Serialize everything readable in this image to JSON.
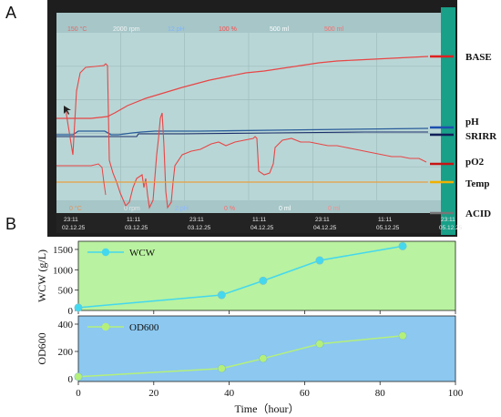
{
  "panel_a": {
    "letter": "A",
    "header": {
      "labels": [
        "150 °C",
        "2000 rpm",
        "12 pH",
        "100 %",
        "500 ml",
        "500 ml"
      ],
      "colors": [
        "#e06a6a",
        "#f4f4f4",
        "#7fb4ff",
        "#ff4a4a",
        "#ffffff",
        "#ff6a6a"
      ]
    },
    "footer": {
      "labels": [
        "0 °C",
        "0 rpm",
        "2 pH",
        "0 %",
        "0 ml",
        "0 ml"
      ],
      "colors": [
        "#e8925a",
        "#e6e6e6",
        "#8fb8ff",
        "#ff6a6a",
        "#ffffff",
        "#ff8a8a"
      ]
    },
    "time_axis": [
      {
        "time": "23:11",
        "date": "02.12.25"
      },
      {
        "time": "11:11",
        "date": "03.12.25"
      },
      {
        "time": "23:11",
        "date": "03.12.25"
      },
      {
        "time": "11:11",
        "date": "04.12.25"
      },
      {
        "time": "23:11",
        "date": "04.12.25"
      },
      {
        "time": "11:11",
        "date": "05.12.25"
      },
      {
        "time": "23:11",
        "date": "05.12.25"
      }
    ],
    "legend": [
      {
        "label": "BASE",
        "color": "#e02020"
      },
      {
        "label": "pH",
        "color": "#1d4fb0"
      },
      {
        "label": "SRIRR",
        "color": "#12205a"
      },
      {
        "label": "pO2",
        "color": "#c81414"
      },
      {
        "label": "Temp",
        "color": "#f0b000"
      },
      {
        "label": "ACID",
        "color": "#777777"
      }
    ],
    "colors": {
      "screen": "#b9d6d6",
      "bezel": "#2a2a2a",
      "red": "#e84545",
      "blue": "#2a5d9a",
      "orange": "#e8a040",
      "frame": "#18a088"
    }
  },
  "chart_data": [
    {
      "type": "line",
      "panel_letter": "B",
      "series": [
        {
          "name": "WCW",
          "x": [
            0,
            38,
            49,
            64,
            86
          ],
          "y": [
            70,
            380,
            730,
            1230,
            1580
          ],
          "color": "#44d8ee"
        }
      ],
      "ylabel": "WCW (g/L)",
      "ylim": [
        0,
        1700
      ],
      "yticks": [
        "0",
        "500",
        "1000",
        "1500"
      ],
      "xlim": [
        0,
        100
      ],
      "background": "#b9f2a0",
      "legend_position": "top-left"
    },
    {
      "type": "line",
      "series": [
        {
          "name": "OD600",
          "x": [
            0,
            38,
            49,
            64,
            86
          ],
          "y": [
            15,
            75,
            148,
            255,
            315
          ],
          "color": "#b4f07a"
        }
      ],
      "ylabel": "OD600",
      "ylim": [
        -20,
        460
      ],
      "yticks": [
        "0",
        "200",
        "400"
      ],
      "xlim": [
        0,
        100
      ],
      "xticks": [
        "0",
        "20",
        "40",
        "60",
        "80",
        "100"
      ],
      "xlabel": "Time（hour）",
      "background": "#8cc8f0",
      "legend_position": "top-left"
    }
  ]
}
